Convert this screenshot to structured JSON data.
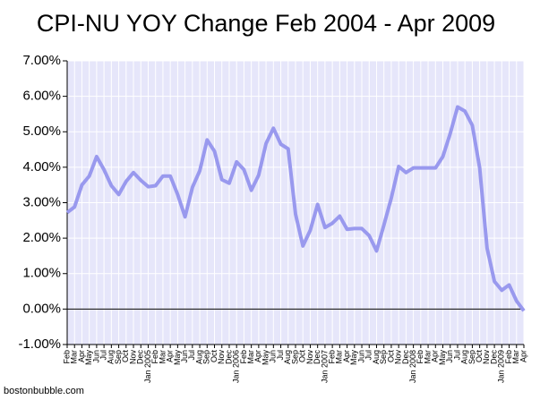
{
  "chart_data": {
    "type": "line",
    "title": "CPI-NU YOY Change Feb 2004 - Apr 2009",
    "footer": "bostonbubble.com",
    "categories": [
      "Feb",
      "Mar",
      "Apr",
      "May",
      "Jun",
      "Jul",
      "Aug",
      "Sep",
      "Oct",
      "Nov",
      "Dec",
      "Jan 2005",
      "Feb",
      "Mar",
      "Apr",
      "May",
      "Jun",
      "Jul",
      "Aug",
      "Sep",
      "Oct",
      "Nov",
      "Dec",
      "Jan 2006",
      "Feb",
      "Mar",
      "Apr",
      "May",
      "Jun",
      "Jul",
      "Aug",
      "Sep",
      "Oct",
      "Nov",
      "Dec",
      "Jan 2007",
      "Feb",
      "Mar",
      "Apr",
      "May",
      "Jun",
      "Jul",
      "Aug",
      "Sep",
      "Oct",
      "Nov",
      "Dec",
      "Jan 2008",
      "Feb",
      "Mar",
      "Apr",
      "May",
      "Jun",
      "Jul",
      "Aug",
      "Sep",
      "Oct",
      "Nov",
      "Dec",
      "Jan 2009",
      "Feb",
      "Mar",
      "Apr"
    ],
    "series": [
      {
        "name": "CPI-NU YOY",
        "color": "#9999ee",
        "values": [
          2.72,
          2.88,
          3.5,
          3.75,
          4.3,
          3.93,
          3.48,
          3.23,
          3.6,
          3.85,
          3.63,
          3.45,
          3.48,
          3.75,
          3.75,
          3.23,
          2.6,
          3.43,
          3.9,
          4.77,
          4.45,
          3.65,
          3.55,
          4.15,
          3.93,
          3.35,
          3.78,
          4.67,
          5.1,
          4.65,
          4.52,
          2.68,
          1.78,
          2.22,
          2.95,
          2.3,
          2.42,
          2.62,
          2.25,
          2.27,
          2.27,
          2.07,
          1.64,
          2.37,
          3.13,
          4.02,
          3.85,
          3.98,
          3.98,
          3.98,
          3.98,
          4.3,
          4.95,
          5.7,
          5.58,
          5.18,
          3.98,
          1.72,
          0.78,
          0.53,
          0.68,
          0.23,
          -0.05
        ]
      }
    ],
    "ylim": [
      -1,
      7
    ],
    "yticks": [
      {
        "value": -1,
        "label": "-1.00%"
      },
      {
        "value": 0,
        "label": "0.00%"
      },
      {
        "value": 1,
        "label": "1.00%"
      },
      {
        "value": 2,
        "label": "2.00%"
      },
      {
        "value": 3,
        "label": "3.00%"
      },
      {
        "value": 4,
        "label": "4.00%"
      },
      {
        "value": 5,
        "label": "5.00%"
      },
      {
        "value": 6,
        "label": "6.00%"
      },
      {
        "value": 7,
        "label": "7.00%"
      }
    ],
    "grid": true,
    "background": "#e6e6fa"
  }
}
